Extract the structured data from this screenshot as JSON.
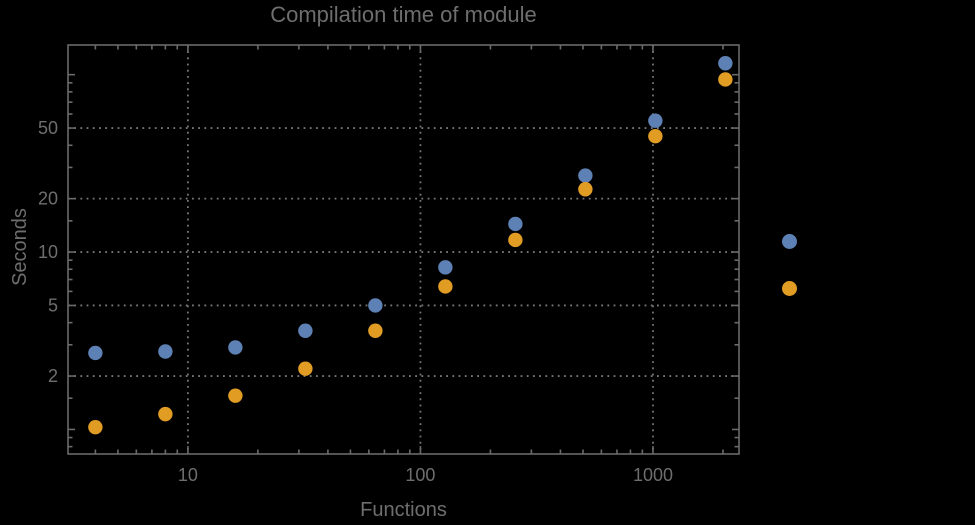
{
  "chart": {
    "title": "Compilation time of module",
    "xlabel": "Functions",
    "ylabel": "Seconds"
  },
  "colors": {
    "background": "#000000",
    "frame": "#6a6a6a",
    "grid": "#777777",
    "text": "#6e6e6e",
    "series1": "#5E81B5",
    "series2": "#E19C24"
  },
  "chart_data": {
    "type": "scatter",
    "title": "Compilation time of module",
    "xlabel": "Functions",
    "ylabel": "Seconds",
    "x_scale": "log",
    "y_scale": "log",
    "xlim": [
      3.05,
      2344
    ],
    "ylim": [
      0.727,
      147
    ],
    "grid": true,
    "grid_style": "dotted",
    "x_ticks_labeled": [
      10,
      100,
      1000
    ],
    "x_tick_labels": [
      "10",
      "100",
      "1000"
    ],
    "x_minor_ticks": [
      4,
      5,
      6,
      7,
      8,
      9,
      20,
      30,
      40,
      50,
      60,
      70,
      80,
      90,
      200,
      300,
      400,
      500,
      600,
      700,
      800,
      900,
      2000
    ],
    "y_ticks_labeled": [
      2,
      5,
      10,
      20,
      50
    ],
    "y_tick_labels": [
      "2",
      "5",
      "10",
      "20",
      "50"
    ],
    "y_ticks_unlabeled_major": [
      1,
      100
    ],
    "y_minor_ticks": [
      0.8,
      0.9,
      1.5,
      3,
      4,
      6,
      7,
      8,
      9,
      15,
      30,
      40,
      60,
      70,
      80,
      90
    ],
    "series": [
      {
        "name": "series-1-blue",
        "color": "#5E81B5",
        "x": [
          4,
          8,
          16,
          32,
          64,
          128,
          256,
          512,
          1024,
          2048
        ],
        "y": [
          2.7,
          2.75,
          2.9,
          3.6,
          5.0,
          8.2,
          14.4,
          27,
          55,
          116
        ]
      },
      {
        "name": "series-2-orange",
        "color": "#E19C24",
        "x": [
          4,
          8,
          16,
          32,
          64,
          128,
          256,
          512,
          1024,
          2048
        ],
        "y": [
          1.03,
          1.22,
          1.55,
          2.2,
          3.6,
          6.4,
          11.7,
          22.6,
          45,
          94
        ]
      }
    ],
    "legend": {
      "position": "right-of-plot",
      "markers": [
        {
          "name": "legend-marker-series-1",
          "color": "#5E81B5",
          "label": ""
        },
        {
          "name": "legend-marker-series-2",
          "color": "#E19C24",
          "label": ""
        }
      ]
    }
  }
}
